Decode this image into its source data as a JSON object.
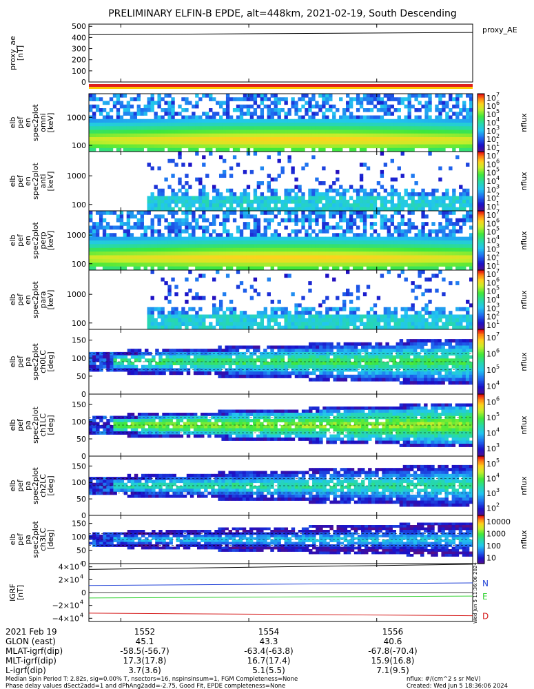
{
  "title": "PRELIMINARY ELFIN-B EPDE, alt=448km, 2021-02-19, South Descending",
  "colors": {
    "N": "#1d3fd6",
    "E": "#2fd12f",
    "D": "#d61d1d",
    "bar_red": "#e0201b",
    "bar_yellow": "#ffc800"
  },
  "chart_data": [
    {
      "type": "line",
      "id": "proxy_ae",
      "ylabel": [
        "proxy_ae",
        "[nT]"
      ],
      "legend": "proxy_AE",
      "yticks": [
        "500",
        "400",
        "300",
        "200",
        "100",
        "0"
      ],
      "ylim": [
        0,
        520
      ],
      "series": [
        {
          "name": "proxy_AE",
          "x": [
            1551.5,
            1557.5
          ],
          "values": [
            425,
            445
          ]
        }
      ]
    },
    {
      "type": "heatmap",
      "id": "spec_omni",
      "ylabel": [
        "elb",
        "pef",
        "en",
        "spec2plot",
        "omni",
        "[keV]"
      ],
      "yticks": [
        "1000",
        "100"
      ],
      "zlabel": "nflux",
      "ztick_exponents": [
        "7",
        "6",
        "5",
        "4",
        "3",
        "2",
        "1"
      ],
      "ylim": [
        60,
        7000
      ],
      "log": true
    },
    {
      "type": "heatmap",
      "id": "spec_anti",
      "ylabel": [
        "elb",
        "pef",
        "en",
        "spec2plot",
        "anti",
        "[keV]"
      ],
      "yticks": [
        "1000",
        "100"
      ],
      "zlabel": "nflux",
      "ztick_exponents": [
        "7",
        "6",
        "5",
        "4",
        "3",
        "2",
        "1"
      ],
      "ylim": [
        60,
        7000
      ],
      "log": true
    },
    {
      "type": "heatmap",
      "id": "spec_perp",
      "ylabel": [
        "elb",
        "pef",
        "en",
        "spec2plot",
        "perp",
        "[keV]"
      ],
      "yticks": [
        "1000",
        "100"
      ],
      "zlabel": "nflux",
      "ztick_exponents": [
        "7",
        "6",
        "5",
        "4",
        "3",
        "2",
        "1"
      ],
      "ylim": [
        60,
        7000
      ],
      "log": true
    },
    {
      "type": "heatmap",
      "id": "spec_para",
      "ylabel": [
        "elb",
        "pef",
        "en",
        "spec2plot",
        "para",
        "[keV]"
      ],
      "yticks": [
        "1000",
        "100"
      ],
      "zlabel": "nflux",
      "ztick_exponents": [
        "7",
        "6",
        "5",
        "4",
        "3",
        "2",
        "1"
      ],
      "ylim": [
        60,
        7000
      ],
      "log": true
    },
    {
      "type": "heatmap",
      "id": "pa_ch0",
      "ylabel": [
        "elb",
        "pef",
        "pa",
        "spec2plot",
        "ch0LC",
        "[deg]"
      ],
      "yticks": [
        "150",
        "100",
        "50",
        "0"
      ],
      "zlabel": "nflux",
      "zticks": [
        "10",
        "10",
        "10",
        "10"
      ],
      "ztick_exponents": [
        "7",
        "6",
        "5",
        "4"
      ],
      "ylim": [
        0,
        180
      ]
    },
    {
      "type": "heatmap",
      "id": "pa_ch1",
      "ylabel": [
        "elb",
        "pef",
        "pa",
        "spec2plot",
        "ch1LC",
        "[deg]"
      ],
      "yticks": [
        "150",
        "100",
        "50",
        "0"
      ],
      "zlabel": "nflux",
      "zticks": [
        "10",
        "10",
        "10",
        "10"
      ],
      "ztick_exponents": [
        "6",
        "5",
        "4",
        "3"
      ],
      "ylim": [
        0,
        180
      ]
    },
    {
      "type": "heatmap",
      "id": "pa_ch2",
      "ylabel": [
        "elb",
        "pef",
        "pa",
        "spec2plot",
        "ch2LC",
        "[deg]"
      ],
      "yticks": [
        "150",
        "100",
        "50",
        "0"
      ],
      "zlabel": "nflux",
      "zticks": [
        "10",
        "10",
        "10",
        "10"
      ],
      "ztick_exponents": [
        "5",
        "4",
        "3",
        "2"
      ],
      "ylim": [
        0,
        180
      ]
    },
    {
      "type": "heatmap",
      "id": "pa_ch3",
      "ylabel": [
        "elb",
        "pef",
        "pa",
        "spec2plot",
        "ch3LC",
        "[deg]"
      ],
      "yticks": [
        "150",
        "100",
        "50",
        "0"
      ],
      "zlabel": "nflux",
      "zticks": [
        "10000",
        "1000",
        "100",
        "10"
      ],
      "ylim": [
        0,
        180
      ]
    },
    {
      "type": "line",
      "id": "igrf",
      "ylabel": [
        "IGRF",
        "[nT]"
      ],
      "yticks_mantissa": [
        "4×10",
        "2×10",
        "0",
        "−2×10",
        "−4×10"
      ],
      "yticks_exponent": "4",
      "ylim": [
        -45000,
        45000
      ],
      "series": [
        {
          "name": "N",
          "x": [
            1551.5,
            1557.5
          ],
          "values": [
            11000,
            15000
          ]
        },
        {
          "name": "E",
          "x": [
            1551.5,
            1557.5
          ],
          "values": [
            -8500,
            -5500
          ]
        },
        {
          "name": "D",
          "x": [
            1551.5,
            1557.5
          ],
          "values": [
            -32000,
            -36000
          ]
        },
        {
          "name": "",
          "x": [
            1551.5,
            1557.5
          ],
          "values": [
            36000,
            44000
          ]
        }
      ]
    }
  ],
  "xaxis": {
    "date": "2021 Feb 19",
    "ticks": [
      "1552",
      "1554",
      "1556"
    ],
    "rows": [
      {
        "label": "GLON (east)",
        "values": [
          "45.1",
          "43.3",
          "40.6"
        ]
      },
      {
        "label": "MLAT-igrf(dip)",
        "values": [
          "-58.5(-56.7)",
          "-63.4(-63.8)",
          "-67.8(-70.4)"
        ]
      },
      {
        "label": "MLT-igrf(dip)",
        "values": [
          "17.3(17.8)",
          "16.7(17.4)",
          "15.9(16.8)"
        ]
      },
      {
        "label": "L-igrf(dip)",
        "values": [
          "3.7(3.6)",
          "5.1(5.5)",
          "7.1(9.5)"
        ]
      }
    ]
  },
  "footer": {
    "line1": "Median Spin Period T: 2.82s, sig=0.00% T, nsectors=16, nspinsinsum=1, FGM Completeness=None",
    "line2": "Phase delay values dSect2add=1 and dPhAng2add=-2.75, Good Fit, EPDE completeness=None",
    "units": "nflux: #/(cm^2 s sr MeV)",
    "created": "Created: Wed Jun  5 18:36:06 2024",
    "stamp": "Wed Jun  5 11:36:06 2024"
  }
}
